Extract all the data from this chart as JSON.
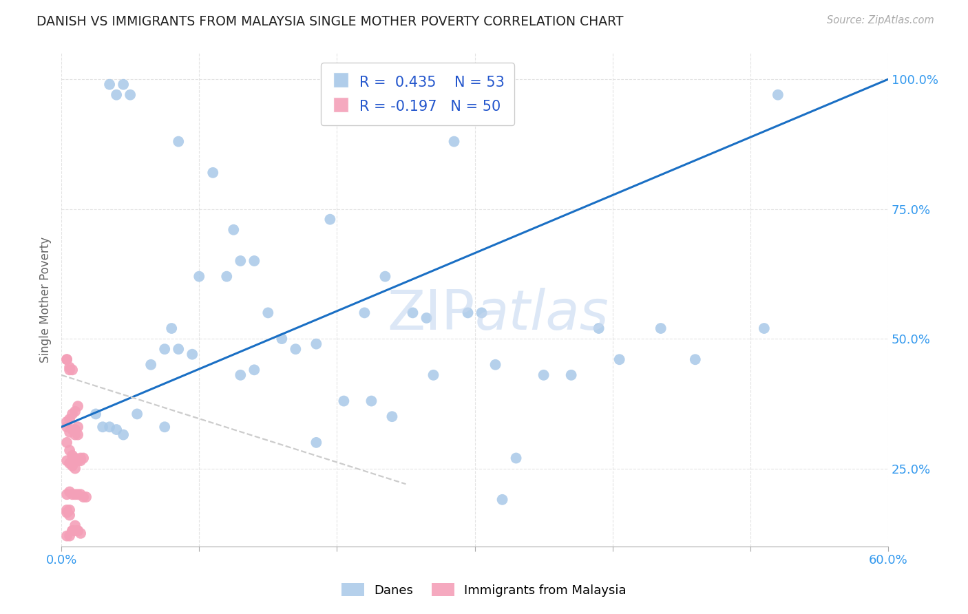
{
  "title": "DANISH VS IMMIGRANTS FROM MALAYSIA SINGLE MOTHER POVERTY CORRELATION CHART",
  "source": "Source: ZipAtlas.com",
  "ylabel": "Single Mother Poverty",
  "xlim": [
    0.0,
    0.6
  ],
  "ylim": [
    0.1,
    1.05
  ],
  "danes_R": 0.435,
  "danes_N": 53,
  "immigrants_R": -0.197,
  "immigrants_N": 50,
  "danes_color": "#a8c8e8",
  "immigrants_color": "#f4a0b8",
  "danes_line_color": "#1a6fc4",
  "immigrants_line_color": "#d08090",
  "immigrants_dash_color": "#cccccc",
  "watermark_color": "#c5d8f0",
  "legend_danes_label": "Danes",
  "legend_imm_label": "Immigrants from Malaysia",
  "danes_line_x0": 0.0,
  "danes_line_y0": 0.33,
  "danes_line_x1": 0.6,
  "danes_line_y1": 1.0,
  "imm_line_x0": 0.0,
  "imm_line_y0": 0.43,
  "imm_line_x1": 0.25,
  "imm_line_y1": 0.22,
  "danes_scatter_x": [
    0.025,
    0.03,
    0.035,
    0.04,
    0.045,
    0.035,
    0.04,
    0.045,
    0.05,
    0.055,
    0.065,
    0.075,
    0.08,
    0.085,
    0.095,
    0.1,
    0.11,
    0.12,
    0.13,
    0.14,
    0.15,
    0.16,
    0.17,
    0.13,
    0.14,
    0.185,
    0.205,
    0.225,
    0.24,
    0.255,
    0.27,
    0.295,
    0.305,
    0.315,
    0.195,
    0.22,
    0.235,
    0.265,
    0.33,
    0.35,
    0.37,
    0.39,
    0.405,
    0.285,
    0.435,
    0.46,
    0.51,
    0.52,
    0.125,
    0.075,
    0.085,
    0.185,
    0.32
  ],
  "danes_scatter_y": [
    0.355,
    0.33,
    0.33,
    0.325,
    0.315,
    0.99,
    0.97,
    0.99,
    0.97,
    0.355,
    0.45,
    0.48,
    0.52,
    0.48,
    0.47,
    0.62,
    0.82,
    0.62,
    0.65,
    0.65,
    0.55,
    0.5,
    0.48,
    0.43,
    0.44,
    0.49,
    0.38,
    0.38,
    0.35,
    0.55,
    0.43,
    0.55,
    0.55,
    0.45,
    0.73,
    0.55,
    0.62,
    0.54,
    0.27,
    0.43,
    0.43,
    0.52,
    0.46,
    0.88,
    0.52,
    0.46,
    0.52,
    0.97,
    0.71,
    0.33,
    0.88,
    0.3,
    0.19
  ],
  "imm_scatter_x": [
    0.004,
    0.006,
    0.008,
    0.01,
    0.012,
    0.004,
    0.006,
    0.008,
    0.01,
    0.012,
    0.004,
    0.006,
    0.008,
    0.01,
    0.012,
    0.014,
    0.004,
    0.006,
    0.008,
    0.01,
    0.012,
    0.014,
    0.016,
    0.018,
    0.004,
    0.006,
    0.008,
    0.01,
    0.012,
    0.014,
    0.004,
    0.006,
    0.008,
    0.01,
    0.012,
    0.014,
    0.016,
    0.004,
    0.006,
    0.008,
    0.01,
    0.012,
    0.004,
    0.006,
    0.008,
    0.01,
    0.004,
    0.006,
    0.004,
    0.006
  ],
  "imm_scatter_y": [
    0.46,
    0.445,
    0.44,
    0.325,
    0.33,
    0.33,
    0.32,
    0.325,
    0.315,
    0.315,
    0.3,
    0.285,
    0.275,
    0.27,
    0.265,
    0.265,
    0.2,
    0.205,
    0.2,
    0.2,
    0.2,
    0.2,
    0.195,
    0.195,
    0.165,
    0.16,
    0.13,
    0.13,
    0.13,
    0.125,
    0.34,
    0.345,
    0.355,
    0.36,
    0.37,
    0.27,
    0.27,
    0.265,
    0.26,
    0.255,
    0.25,
    0.13,
    0.12,
    0.12,
    0.13,
    0.14,
    0.46,
    0.44,
    0.17,
    0.17
  ]
}
